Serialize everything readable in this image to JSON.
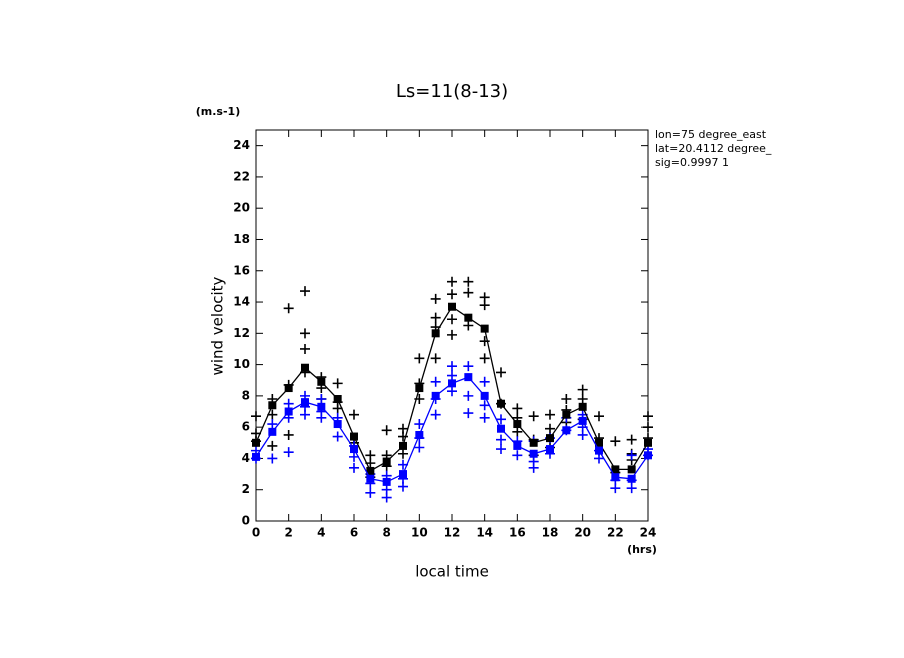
{
  "chart_data": {
    "type": "line",
    "title": "Ls=11(8-13)",
    "y_unit": "(m.s-1)",
    "y_label": "wind velocity",
    "x_label": "local time",
    "x_unit": "(hrs)",
    "annotations": [
      "lon=75 degree_east",
      "lat=20.4112 degree_",
      "sig=0.9997 1"
    ],
    "xlim": [
      0,
      24
    ],
    "ylim": [
      0,
      25
    ],
    "xticks": [
      0,
      2,
      4,
      6,
      8,
      10,
      12,
      14,
      16,
      18,
      20,
      22,
      24
    ],
    "yticks": [
      0,
      2,
      4,
      6,
      8,
      10,
      12,
      14,
      16,
      18,
      20,
      22,
      24
    ],
    "series": [
      {
        "type": "scatter",
        "color": "#000000",
        "x": [
          0,
          0,
          0,
          1,
          1,
          1,
          2,
          2,
          2,
          3,
          3,
          3,
          3,
          4,
          4,
          4,
          5,
          5,
          5,
          6,
          6,
          7,
          7,
          7,
          8,
          8,
          8,
          9,
          9,
          9,
          10,
          10,
          10,
          11,
          11,
          11,
          11,
          12,
          12,
          12,
          12,
          13,
          13,
          13,
          14,
          14,
          14,
          14,
          15,
          15,
          16,
          16,
          16,
          17,
          17,
          17,
          18,
          18,
          18,
          19,
          19,
          19,
          20,
          20,
          20,
          21,
          21,
          22,
          22,
          23,
          23,
          23,
          24,
          24,
          24
        ],
        "values": [
          6.7,
          5.6,
          5.1,
          7.8,
          6.8,
          4.8,
          8.7,
          13.6,
          5.5,
          14.7,
          12.0,
          11.0,
          9.5,
          9.2,
          8.5,
          7.8,
          8.8,
          7.6,
          7.2,
          6.8,
          5.0,
          4.2,
          3.7,
          2.8,
          5.8,
          4.2,
          3.5,
          5.9,
          5.4,
          4.3,
          10.4,
          8.8,
          7.8,
          14.2,
          13.0,
          12.4,
          10.4,
          15.3,
          14.5,
          12.9,
          11.9,
          15.3,
          14.6,
          12.5,
          14.3,
          13.8,
          11.5,
          10.4,
          9.5,
          7.5,
          7.2,
          6.6,
          5.7,
          6.7,
          5.2,
          4.2,
          6.8,
          5.9,
          4.7,
          7.8,
          7.1,
          6.3,
          8.4,
          7.8,
          6.5,
          6.7,
          5.3,
          5.1,
          3.1,
          5.2,
          4.3,
          3.9,
          6.7,
          6.0,
          5.3
        ]
      },
      {
        "type": "scatter",
        "color": "#0000ff",
        "x": [
          0,
          0,
          1,
          1,
          2,
          2,
          2,
          3,
          3,
          3,
          4,
          4,
          4,
          5,
          5,
          6,
          6,
          6,
          7,
          7,
          7,
          8,
          8,
          8,
          9,
          9,
          9,
          10,
          10,
          10,
          11,
          11,
          11,
          12,
          12,
          12,
          13,
          13,
          13,
          14,
          14,
          14,
          15,
          15,
          15,
          16,
          16,
          17,
          17,
          17,
          18,
          18,
          19,
          19,
          20,
          20,
          20,
          21,
          21,
          22,
          22,
          23,
          23,
          23,
          24,
          24
        ],
        "values": [
          4.5,
          4.0,
          6.2,
          4.0,
          7.5,
          6.6,
          4.4,
          8.0,
          7.3,
          6.8,
          7.8,
          7.0,
          6.6,
          6.6,
          5.4,
          4.8,
          4.1,
          3.4,
          3.0,
          2.4,
          1.8,
          2.9,
          2.0,
          1.5,
          3.6,
          2.7,
          2.2,
          6.2,
          5.3,
          4.7,
          8.9,
          7.8,
          6.8,
          9.9,
          9.3,
          8.3,
          9.9,
          8.0,
          6.9,
          8.9,
          7.4,
          6.6,
          6.5,
          5.2,
          4.6,
          5.1,
          4.2,
          5.1,
          3.8,
          3.4,
          5.3,
          4.3,
          6.6,
          5.8,
          6.8,
          6.0,
          5.5,
          4.5,
          4.0,
          2.6,
          2.1,
          4.2,
          2.6,
          2.1,
          4.6,
          4.2
        ]
      },
      {
        "type": "line",
        "color": "#000000",
        "x": [
          0,
          1,
          2,
          3,
          4,
          5,
          6,
          7,
          8,
          9,
          10,
          11,
          12,
          13,
          14,
          15,
          16,
          17,
          18,
          19,
          20,
          21,
          22,
          23,
          24
        ],
        "values": [
          5.0,
          7.4,
          8.5,
          9.8,
          8.9,
          7.8,
          5.4,
          3.2,
          3.8,
          4.8,
          8.5,
          12.0,
          13.7,
          13.0,
          12.3,
          7.5,
          6.2,
          5.0,
          5.3,
          6.8,
          7.3,
          5.0,
          3.3,
          3.3,
          5.0
        ]
      },
      {
        "type": "line",
        "color": "#0000ff",
        "x": [
          0,
          1,
          2,
          3,
          4,
          5,
          6,
          7,
          8,
          9,
          10,
          11,
          12,
          13,
          14,
          15,
          16,
          17,
          18,
          19,
          20,
          21,
          22,
          23,
          24
        ],
        "values": [
          4.1,
          5.7,
          7.0,
          7.6,
          7.3,
          6.2,
          4.6,
          2.7,
          2.5,
          3.0,
          5.5,
          8.0,
          8.8,
          9.2,
          8.0,
          5.9,
          4.8,
          4.3,
          4.6,
          5.8,
          6.4,
          4.5,
          2.8,
          2.7,
          4.2
        ]
      }
    ]
  }
}
